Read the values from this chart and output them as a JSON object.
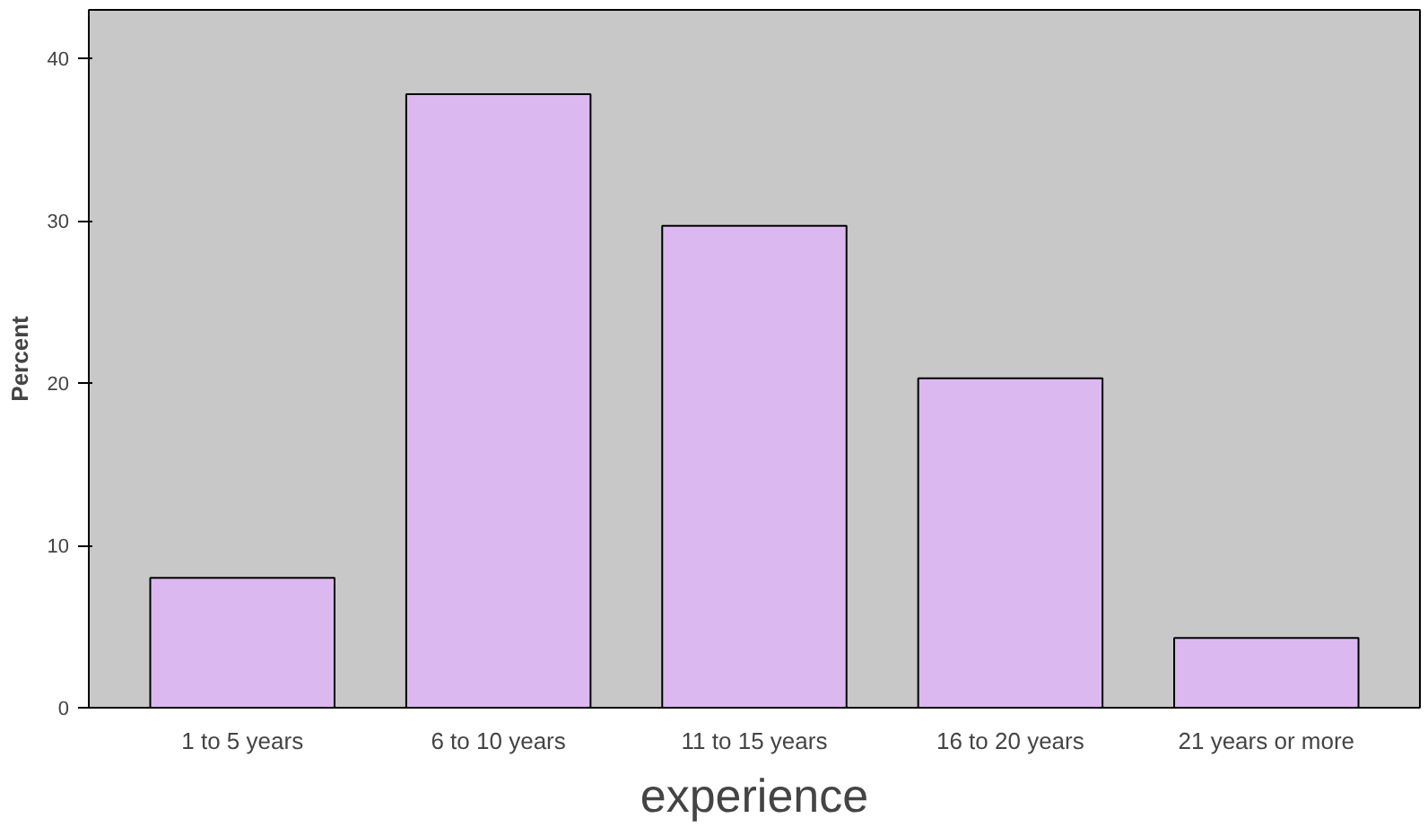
{
  "chart_data": {
    "type": "bar",
    "xlabel": "experience",
    "ylabel": "Percent",
    "categories": [
      "1 to 5 years",
      "6 to 10 years",
      "11 to 15 years",
      "16 to 20 years",
      "21 years or more"
    ],
    "values": [
      8.0,
      37.8,
      29.7,
      20.3,
      4.3
    ],
    "color": "#dcb8f0",
    "ylim": [
      0,
      43
    ],
    "yticks": [
      0,
      10,
      20,
      30,
      40
    ],
    "grid": false
  }
}
